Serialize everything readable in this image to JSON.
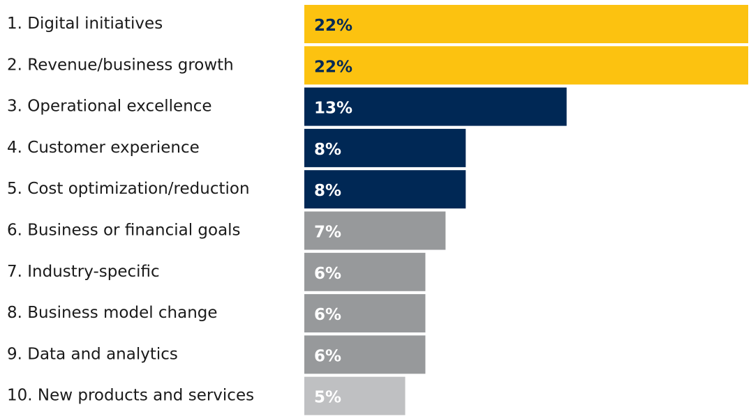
{
  "chart_data": {
    "type": "bar",
    "orientation": "horizontal",
    "categories": [
      "1. Digital initiatives",
      "2. Revenue/business growth",
      "3. Operational excellence",
      "4. Customer experience",
      "5. Cost optimization/reduction",
      "6. Business or financial goals",
      "7. Industry-specific",
      "8. Business model change",
      "9. Data and analytics",
      "10. New products and services"
    ],
    "values": [
      22,
      22,
      13,
      8,
      8,
      7,
      6,
      6,
      6,
      5
    ],
    "value_labels": [
      "22%",
      "22%",
      "13%",
      "8%",
      "8%",
      "7%",
      "6%",
      "6%",
      "6%",
      "5%"
    ],
    "bar_colors": [
      "#FCC210",
      "#FCC210",
      "#002855",
      "#002855",
      "#002855",
      "#97999B",
      "#97999B",
      "#97999B",
      "#97999B",
      "#BFC0C2"
    ],
    "label_colors": [
      "#002855",
      "#002855",
      "#ffffff",
      "#ffffff",
      "#ffffff",
      "#ffffff",
      "#ffffff",
      "#ffffff",
      "#ffffff",
      "#ffffff"
    ],
    "xlim": [
      0,
      22
    ],
    "grid": false,
    "legend": "none",
    "title": "",
    "xlabel": "",
    "ylabel": ""
  }
}
